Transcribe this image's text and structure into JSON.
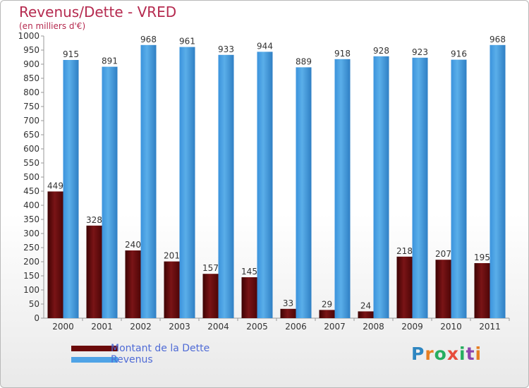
{
  "header": {
    "title": "Revenus/Dette - VRED",
    "subtitle": "(en milliers d'€)"
  },
  "legend": {
    "items": [
      {
        "label": "Montant de la Dette",
        "color": "#6b0a0a"
      },
      {
        "label": "Revenus",
        "color": "#4fa3e6"
      }
    ]
  },
  "logo": {
    "text": "Proxiti",
    "letter_colors": [
      "#2e86c1",
      "#e67e22",
      "#27ae60",
      "#e74c3c",
      "#27ae60",
      "#8e44ad",
      "#e67e22"
    ]
  },
  "chart_data": {
    "type": "bar",
    "categories": [
      "2000",
      "2001",
      "2002",
      "2003",
      "2004",
      "2005",
      "2006",
      "2007",
      "2008",
      "2009",
      "2010",
      "2011"
    ],
    "series": [
      {
        "name": "Montant de la Dette",
        "values": [
          449,
          328,
          240,
          201,
          157,
          145,
          33,
          29,
          24,
          218,
          207,
          195
        ],
        "color": "#7a0f12"
      },
      {
        "name": "Revenus",
        "values": [
          915,
          891,
          968,
          961,
          933,
          944,
          889,
          918,
          928,
          923,
          916,
          968
        ],
        "color": "#4fa3e6"
      }
    ],
    "ylim": [
      0,
      1000
    ],
    "ytick_step": 50,
    "grid": false,
    "legend": "bottom-left"
  }
}
